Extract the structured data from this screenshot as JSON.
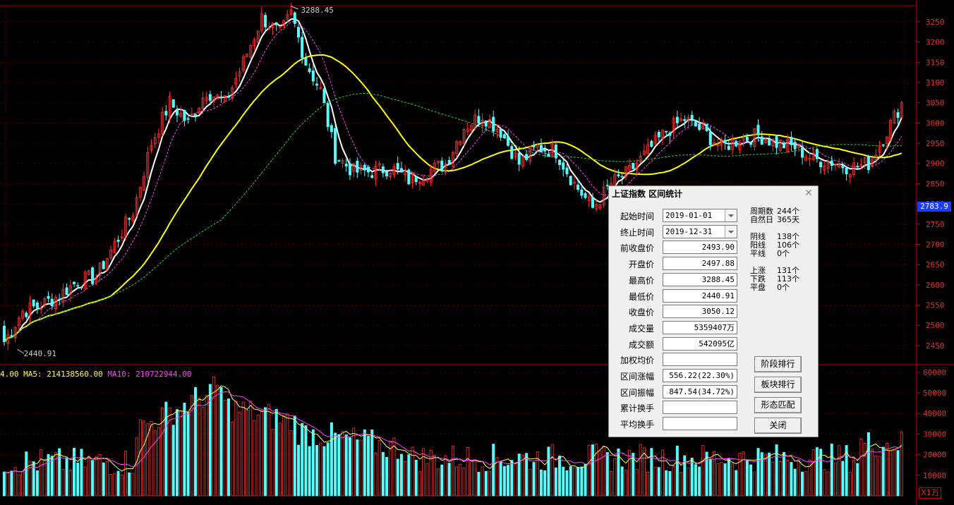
{
  "chart_data": {
    "type": "candlestick",
    "price_axis": {
      "ticks": [
        3250,
        3200,
        3150,
        3100,
        3050,
        3000,
        2950,
        2900,
        2850,
        2800,
        2750,
        2700,
        2650,
        2600,
        2550,
        2500,
        2450
      ],
      "range": [
        2415,
        3290
      ]
    },
    "volume_axis": {
      "ticks": [
        60000,
        50000,
        40000,
        30000,
        20000,
        10000
      ],
      "range": [
        0,
        62000
      ],
      "unit": "X1万"
    },
    "annotations": {
      "high_label": "3288.45",
      "low_label": "2440.91",
      "current_price": "2783.9"
    },
    "price_key_points": [
      [
        0,
        2494,
        2460
      ],
      [
        5,
        2510,
        2535
      ],
      [
        10,
        2535,
        2550
      ],
      [
        15,
        2550,
        2575
      ],
      [
        20,
        2580,
        2610
      ],
      [
        25,
        2600,
        2620
      ],
      [
        30,
        2640,
        2700
      ],
      [
        35,
        2700,
        2780
      ],
      [
        40,
        2800,
        2950
      ],
      [
        45,
        2950,
        3050
      ],
      [
        50,
        3050,
        3000
      ],
      [
        55,
        3000,
        3080
      ],
      [
        60,
        3080,
        3050
      ],
      [
        65,
        3060,
        3150
      ],
      [
        70,
        3150,
        3260
      ],
      [
        75,
        3240,
        3220
      ],
      [
        78,
        3250,
        3270
      ],
      [
        82,
        3220,
        3150
      ],
      [
        86,
        3150,
        3080
      ],
      [
        90,
        3000,
        2920
      ],
      [
        95,
        2900,
        2880
      ],
      [
        100,
        2890,
        2880
      ],
      [
        105,
        2880,
        2890
      ],
      [
        110,
        2880,
        2860
      ],
      [
        115,
        2860,
        2880
      ],
      [
        120,
        2890,
        2900
      ],
      [
        125,
        2930,
        2990
      ],
      [
        130,
        3000,
        3020
      ],
      [
        135,
        3010,
        2980
      ],
      [
        140,
        2960,
        2900
      ],
      [
        145,
        2920,
        2940
      ],
      [
        150,
        2930,
        2930
      ],
      [
        155,
        2910,
        2850
      ],
      [
        160,
        2820,
        2790
      ],
      [
        165,
        2800,
        2850
      ],
      [
        170,
        2860,
        2880
      ],
      [
        175,
        2890,
        2930
      ],
      [
        180,
        2940,
        2980
      ],
      [
        185,
        2990,
        3010
      ],
      [
        190,
        3000,
        2980
      ],
      [
        195,
        2960,
        2940
      ],
      [
        200,
        2950,
        2960
      ],
      [
        205,
        2960,
        2970
      ],
      [
        210,
        2960,
        2950
      ],
      [
        215,
        2950,
        2940
      ],
      [
        220,
        2930,
        2910
      ],
      [
        225,
        2910,
        2905
      ],
      [
        230,
        2900,
        2890
      ],
      [
        235,
        2890,
        2900
      ],
      [
        240,
        2910,
        2980
      ],
      [
        244,
        3000,
        3050
      ]
    ],
    "legend": {
      "vol": "4.00",
      "ma5": "MA5: 214138560.00",
      "ma10": "MA10: 210722944.00"
    }
  },
  "dialog": {
    "title": "上证指数 区间统计",
    "rows": [
      {
        "label": "起始时间",
        "value": "2019-01-01",
        "type": "date"
      },
      {
        "label": "终止时间",
        "value": "2019-12-31",
        "type": "date"
      },
      {
        "label": "前收盘价",
        "value": "2493.90"
      },
      {
        "label": "开盘价",
        "value": "2497.88"
      },
      {
        "label": "最高价",
        "value": "3288.45"
      },
      {
        "label": "最低价",
        "value": "2440.91"
      },
      {
        "label": "收盘价",
        "value": "3050.12"
      },
      {
        "label": "成交量",
        "value": "5359407万"
      },
      {
        "label": "成交额",
        "value": "542095亿"
      },
      {
        "label": "加权均价",
        "value": ""
      },
      {
        "label": "区间涨幅",
        "value": "556.22(22.30%)"
      },
      {
        "label": "区间振幅",
        "value": "847.54(34.72%)"
      },
      {
        "label": "累计换手",
        "value": ""
      },
      {
        "label": "平均换手",
        "value": ""
      }
    ],
    "stats": [
      {
        "k": "周期数",
        "v": "244个"
      },
      {
        "k": "自然日",
        "v": "365天"
      },
      {
        "k": "阴线",
        "v": "138个"
      },
      {
        "k": "阳线",
        "v": "106个"
      },
      {
        "k": "平线",
        "v": "0个"
      },
      {
        "k": "上涨",
        "v": "131个"
      },
      {
        "k": "下跌",
        "v": "113个"
      },
      {
        "k": "平盘",
        "v": "0个"
      }
    ],
    "buttons": [
      "阶段排行",
      "板块排行",
      "形态匹配",
      "关闭"
    ]
  }
}
